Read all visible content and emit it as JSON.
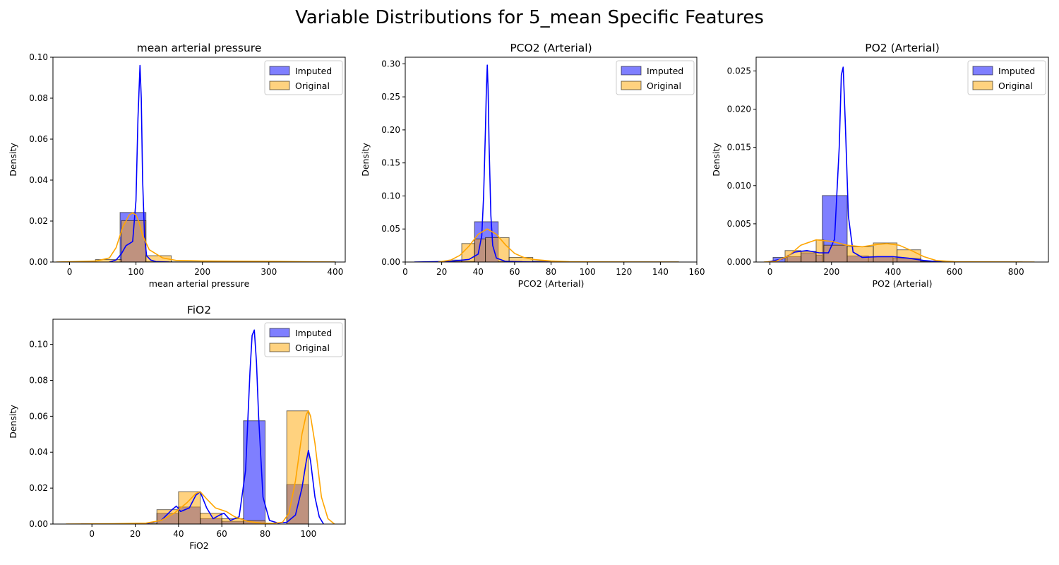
{
  "figure": {
    "title": "Variable Distributions for 5_mean Specific Features"
  },
  "colors": {
    "imputed": "#0000ff",
    "original": "#ffa500",
    "edge": "#000000"
  },
  "chart_data": [
    {
      "type": "bar",
      "title": "mean arterial pressure",
      "xlabel": "mean arterial pressure",
      "ylabel": "Density",
      "xlim": [
        -25,
        415
      ],
      "ylim": [
        0,
        0.1
      ],
      "xticks": [
        0,
        100,
        200,
        300,
        400
      ],
      "yticks": [
        0.0,
        0.02,
        0.04,
        0.06,
        0.08,
        0.1
      ],
      "ytick_labels": [
        "0.00",
        "0.02",
        "0.04",
        "0.06",
        "0.08",
        "0.10"
      ],
      "legend": {
        "position": "top-right",
        "entries": [
          "Imputed",
          "Original"
        ]
      },
      "series": [
        {
          "name": "Imputed",
          "kind": "histogram",
          "bins": [
            [
              76,
              115,
              0.0242
            ],
            [
              115,
              154,
              0.0002
            ]
          ]
        },
        {
          "name": "Original",
          "kind": "histogram",
          "bins": [
            [
              39,
              78,
              0.0012
            ],
            [
              78,
              115,
              0.0202
            ],
            [
              115,
              153,
              0.0031
            ],
            [
              153,
              400,
              0.0001
            ]
          ]
        },
        {
          "name": "Imputed",
          "kind": "kde",
          "x": [
            60,
            70,
            78,
            85,
            90,
            95,
            100,
            103,
            106,
            108,
            110,
            113,
            116,
            122,
            130,
            150
          ],
          "y": [
            0,
            0.001,
            0.004,
            0.008,
            0.009,
            0.01,
            0.03,
            0.07,
            0.096,
            0.08,
            0.04,
            0.012,
            0.003,
            0.001,
            0.0002,
            0
          ]
        },
        {
          "name": "Original",
          "kind": "kde",
          "x": [
            -20,
            40,
            60,
            70,
            80,
            90,
            95,
            100,
            105,
            110,
            120,
            140,
            160,
            200,
            300,
            400
          ],
          "y": [
            0,
            0.0005,
            0.002,
            0.007,
            0.017,
            0.023,
            0.024,
            0.023,
            0.019,
            0.013,
            0.006,
            0.002,
            0.0008,
            0.0005,
            0.0003,
            0
          ]
        }
      ]
    },
    {
      "type": "bar",
      "title": "PCO2 (Arterial)",
      "xlabel": "PCO2 (Arterial)",
      "ylabel": "Density",
      "xlim": [
        0,
        160
      ],
      "ylim": [
        0,
        0.31
      ],
      "xticks": [
        0,
        20,
        40,
        60,
        80,
        100,
        120,
        140,
        160
      ],
      "yticks": [
        0.0,
        0.05,
        0.1,
        0.15,
        0.2,
        0.25,
        0.3
      ],
      "ytick_labels": [
        "0.00",
        "0.05",
        "0.10",
        "0.15",
        "0.20",
        "0.25",
        "0.30"
      ],
      "legend": {
        "position": "top-right",
        "entries": [
          "Imputed",
          "Original"
        ]
      },
      "series": [
        {
          "name": "Imputed",
          "kind": "histogram",
          "bins": [
            [
              38,
              51,
              0.061
            ],
            [
              51,
              64,
              0.001
            ],
            [
              25,
              38,
              0.001
            ]
          ]
        },
        {
          "name": "Original",
          "kind": "histogram",
          "bins": [
            [
              19,
              25,
              0.001
            ],
            [
              25,
              31,
              0.003
            ],
            [
              31,
              38,
              0.028
            ],
            [
              38,
              44,
              0.035
            ],
            [
              44,
              57,
              0.037
            ],
            [
              57,
              70,
              0.007
            ],
            [
              70,
              83,
              0.0015
            ],
            [
              83,
              150,
              0.0003
            ]
          ]
        },
        {
          "name": "Imputed",
          "kind": "kde",
          "x": [
            5,
            25,
            35,
            40,
            42,
            43,
            44,
            44.5,
            45,
            45.5,
            46,
            47,
            48,
            50,
            55,
            65,
            80
          ],
          "y": [
            0,
            0.001,
            0.004,
            0.012,
            0.04,
            0.1,
            0.2,
            0.26,
            0.298,
            0.26,
            0.18,
            0.07,
            0.025,
            0.006,
            0.001,
            0.0002,
            0
          ]
        },
        {
          "name": "Original",
          "kind": "kde",
          "x": [
            18,
            25,
            30,
            35,
            40,
            45,
            50,
            55,
            60,
            65,
            70,
            80,
            90,
            100,
            150
          ],
          "y": [
            0,
            0.003,
            0.01,
            0.024,
            0.042,
            0.05,
            0.042,
            0.026,
            0.013,
            0.007,
            0.004,
            0.0015,
            0.0005,
            0.0002,
            0
          ]
        }
      ]
    },
    {
      "type": "bar",
      "title": "PO2 (Arterial)",
      "xlabel": "PO2 (Arterial)",
      "ylabel": "Density",
      "xlim": [
        -45,
        905
      ],
      "ylim": [
        0,
        0.0268
      ],
      "xticks": [
        0,
        200,
        400,
        600,
        800
      ],
      "yticks": [
        0.0,
        0.005,
        0.01,
        0.015,
        0.02,
        0.025
      ],
      "ytick_labels": [
        "0.000",
        "0.005",
        "0.010",
        "0.015",
        "0.020",
        "0.025"
      ],
      "legend": {
        "position": "top-right",
        "entries": [
          "Imputed",
          "Original"
        ]
      },
      "series": [
        {
          "name": "Imputed",
          "kind": "histogram",
          "bins": [
            [
              10,
              56,
              0.0006
            ],
            [
              56,
              101,
              0.0007
            ],
            [
              101,
              150,
              0.0012
            ],
            [
              150,
              170,
              0.0009
            ],
            [
              170,
              251,
              0.0087
            ],
            [
              251,
              320,
              0.0008
            ],
            [
              320,
              400,
              0.0007
            ],
            [
              400,
              490,
              0.0005
            ],
            [
              490,
              540,
              0.0001
            ]
          ]
        },
        {
          "name": "Original",
          "kind": "histogram",
          "bins": [
            [
              49,
              101,
              0.0015
            ],
            [
              101,
              150,
              0.0014
            ],
            [
              150,
              175,
              0.0029
            ],
            [
              175,
              251,
              0.0022
            ],
            [
              251,
              336,
              0.002
            ],
            [
              336,
              413,
              0.0025
            ],
            [
              413,
              490,
              0.0016
            ],
            [
              490,
              570,
              0.0001
            ],
            [
              570,
              820,
              2e-05
            ]
          ]
        },
        {
          "name": "Imputed",
          "kind": "kde",
          "x": [
            -10,
            40,
            80,
            120,
            160,
            190,
            210,
            225,
            232,
            238,
            245,
            255,
            270,
            300,
            350,
            400,
            450,
            500,
            560
          ],
          "y": [
            0,
            0.0004,
            0.0013,
            0.0015,
            0.0012,
            0.0012,
            0.003,
            0.015,
            0.0245,
            0.0255,
            0.018,
            0.006,
            0.0013,
            0.0006,
            0.0007,
            0.0007,
            0.0005,
            0.0002,
            0
          ]
        },
        {
          "name": "Original",
          "kind": "kde",
          "x": [
            -20,
            20,
            60,
            100,
            150,
            200,
            250,
            300,
            350,
            380,
            420,
            460,
            500,
            540,
            600,
            700,
            800,
            860
          ],
          "y": [
            0,
            0.0001,
            0.0008,
            0.0022,
            0.0029,
            0.0027,
            0.0022,
            0.002,
            0.0023,
            0.0024,
            0.0022,
            0.0015,
            0.0007,
            0.0002,
            5e-05,
            2e-05,
            1e-05,
            0
          ]
        }
      ]
    },
    {
      "type": "bar",
      "title": "FiO2",
      "xlabel": "FiO2",
      "ylabel": "Density",
      "xlim": [
        -18,
        117
      ],
      "ylim": [
        0,
        0.114
      ],
      "xticks": [
        0,
        20,
        40,
        60,
        80,
        100
      ],
      "yticks": [
        0.0,
        0.02,
        0.04,
        0.06,
        0.08,
        0.1
      ],
      "ytick_labels": [
        "0.00",
        "0.02",
        "0.04",
        "0.06",
        "0.08",
        "0.10"
      ],
      "legend": {
        "position": "top-right",
        "entries": [
          "Imputed",
          "Original"
        ]
      },
      "series": [
        {
          "name": "Imputed",
          "kind": "histogram",
          "bins": [
            [
              30,
              40,
              0.006
            ],
            [
              40,
              50,
              0.0095
            ],
            [
              50,
              60,
              0.003
            ],
            [
              60,
              70,
              0.0015
            ],
            [
              70,
              80,
              0.0575
            ],
            [
              90,
              100,
              0.022
            ]
          ]
        },
        {
          "name": "Original",
          "kind": "histogram",
          "bins": [
            [
              20,
              30,
              0.0005
            ],
            [
              30,
              40,
              0.008
            ],
            [
              40,
              50,
              0.018
            ],
            [
              50,
              60,
              0.006
            ],
            [
              60,
              70,
              0.003
            ],
            [
              70,
              80,
              0.002
            ],
            [
              90,
              100,
              0.063
            ]
          ]
        },
        {
          "name": "Imputed",
          "kind": "kde",
          "x": [
            -5,
            25,
            32,
            37,
            39,
            41,
            45,
            48,
            50,
            53,
            56,
            59,
            61,
            64,
            68,
            71,
            73,
            74,
            75,
            76,
            77,
            79,
            82,
            86,
            90,
            94,
            97,
            99,
            100,
            101,
            103,
            105,
            107
          ],
          "y": [
            0,
            0.0002,
            0.002,
            0.008,
            0.01,
            0.007,
            0.009,
            0.016,
            0.018,
            0.009,
            0.003,
            0.005,
            0.006,
            0.002,
            0.004,
            0.03,
            0.085,
            0.105,
            0.108,
            0.09,
            0.06,
            0.015,
            0.002,
            0.0005,
            0.001,
            0.005,
            0.02,
            0.035,
            0.041,
            0.035,
            0.015,
            0.004,
            0
          ]
        },
        {
          "name": "Original",
          "kind": "kde",
          "x": [
            -12,
            10,
            25,
            32,
            38,
            44,
            48,
            50,
            53,
            57,
            62,
            66,
            72,
            78,
            84,
            88,
            91,
            94,
            97,
            99,
            100,
            101,
            103,
            106,
            109,
            112
          ],
          "y": [
            0,
            0.0002,
            0.0005,
            0.002,
            0.006,
            0.012,
            0.017,
            0.018,
            0.014,
            0.009,
            0.007,
            0.004,
            0.0015,
            0.0005,
            0.0004,
            0.001,
            0.006,
            0.024,
            0.05,
            0.061,
            0.063,
            0.06,
            0.045,
            0.015,
            0.003,
            0
          ]
        }
      ]
    }
  ]
}
